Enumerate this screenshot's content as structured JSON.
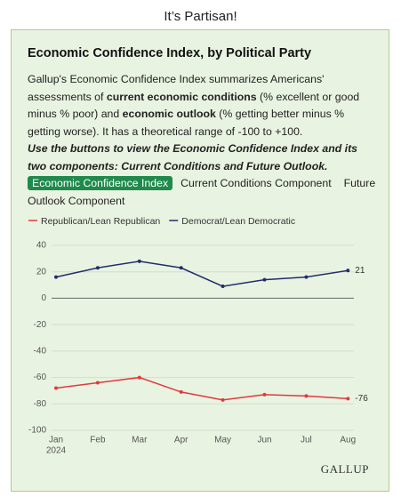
{
  "heading": "It’s Partisan!",
  "card": {
    "title": "Economic Confidence Index, by Political Party",
    "description": [
      "Gallup's Economic Confidence Index summarizes Americans' assessments of ",
      "current economic conditions",
      " (% excellent or good minus % poor) and ",
      "economic outlook",
      " (% getting better minus % getting worse). It has a theoretical range of -100 to +100."
    ],
    "instructions": "Use the buttons to view the Economic Confidence Index and its two components: Current Conditions and Future Outlook.",
    "buttons": [
      "Economic Confidence Index",
      "Current Conditions Component",
      "Future Outlook Component"
    ],
    "logo": "GALLUP"
  },
  "chart_data": {
    "type": "line",
    "categories": [
      "Jan",
      "Feb",
      "Mar",
      "Apr",
      "May",
      "Jun",
      "Jul",
      "Aug"
    ],
    "year": "2024",
    "series": [
      {
        "name": "Republican/Lean Republican",
        "color": "#e0393e",
        "values": [
          -68,
          -64,
          -60,
          -71,
          -77,
          -73,
          -74,
          -76
        ]
      },
      {
        "name": "Democrat/Lean Democratic",
        "color": "#1f2f6b",
        "values": [
          16,
          23,
          28,
          23,
          9,
          14,
          16,
          21
        ]
      }
    ],
    "ylim": [
      -100,
      40
    ],
    "yticks": [
      40,
      20,
      0,
      -20,
      -40,
      -60,
      -80,
      -100
    ],
    "grid": true
  }
}
